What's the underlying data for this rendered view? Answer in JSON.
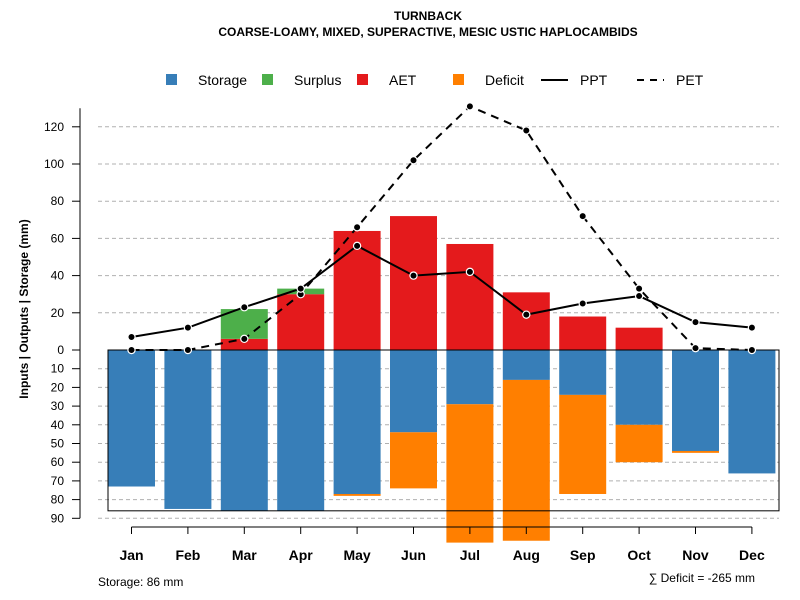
{
  "chart_data": {
    "type": "bar",
    "title": "TURNBACK",
    "subtitle": "COARSE-LOAMY, MIXED, SUPERACTIVE, MESIC USTIC HAPLOCAMBIDS",
    "ylabel": "Inputs | Outputs | Storage    (mm)",
    "ylim_top": [
      0,
      130
    ],
    "ylim_bottom": [
      0,
      90
    ],
    "yticks_top": [
      "0",
      "20",
      "40",
      "60",
      "80",
      "100",
      "120"
    ],
    "yticks_bottom": [
      "10",
      "20",
      "30",
      "40",
      "50",
      "60",
      "70",
      "80",
      "90"
    ],
    "categories": [
      "Jan",
      "Feb",
      "Mar",
      "Apr",
      "May",
      "Jun",
      "Jul",
      "Aug",
      "Sep",
      "Oct",
      "Nov",
      "Dec"
    ],
    "series": [
      {
        "name": "Storage",
        "color": "#377EB8",
        "values": [
          73,
          85,
          86,
          86,
          77,
          44,
          29,
          16,
          24,
          40,
          54,
          66
        ]
      },
      {
        "name": "Surplus",
        "color": "#4DAF4A",
        "values": [
          0,
          0,
          16,
          3,
          0,
          0,
          0,
          0,
          0,
          0,
          0,
          0
        ]
      },
      {
        "name": "AET",
        "color": "#E41A1C",
        "values": [
          0,
          0,
          6,
          30,
          64,
          72,
          57,
          31,
          18,
          12,
          0,
          0
        ]
      },
      {
        "name": "Deficit",
        "color": "#FF7F00",
        "values": [
          0,
          0,
          0,
          0,
          1,
          30,
          74,
          86,
          53,
          20,
          1,
          0
        ]
      },
      {
        "name": "PPT",
        "color": "#000000",
        "values": [
          7,
          12,
          23,
          33,
          56,
          40,
          42,
          19,
          25,
          29,
          15,
          12
        ]
      },
      {
        "name": "PET",
        "color": "#000000",
        "values": [
          0,
          0,
          6,
          30,
          66,
          102,
          131,
          118,
          72,
          33,
          1,
          0
        ]
      }
    ],
    "legend_position": "top",
    "storage_capacity": 86,
    "footer_storage": "Storage: 86 mm",
    "footer_deficit": "∑ Deficit = -265 mm"
  }
}
